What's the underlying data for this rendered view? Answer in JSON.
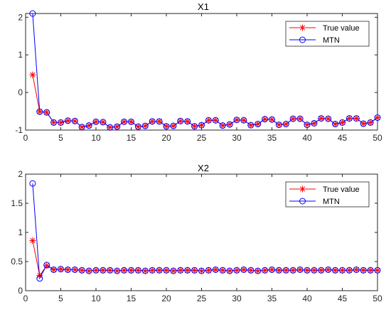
{
  "chart_data": [
    {
      "type": "line",
      "title": "X1",
      "xlabel": "",
      "ylabel": "",
      "xlim": [
        0,
        50
      ],
      "ylim": [
        -1,
        2.1
      ],
      "xticks": [
        0,
        5,
        10,
        15,
        20,
        25,
        30,
        35,
        40,
        45,
        50
      ],
      "yticks": [
        -1,
        0,
        1,
        2
      ],
      "grid": false,
      "legend_position": "top-right",
      "x": [
        1,
        2,
        3,
        4,
        5,
        6,
        7,
        8,
        9,
        10,
        11,
        12,
        13,
        14,
        15,
        16,
        17,
        18,
        19,
        20,
        21,
        22,
        23,
        24,
        25,
        26,
        27,
        28,
        29,
        30,
        31,
        32,
        33,
        34,
        35,
        36,
        37,
        38,
        39,
        40,
        41,
        42,
        43,
        44,
        45,
        46,
        47,
        48,
        49,
        50
      ],
      "series": [
        {
          "name": "True value",
          "color": "#ff0000",
          "marker": "asterisk",
          "values": [
            0.47,
            -0.51,
            -0.53,
            -0.8,
            -0.8,
            -0.75,
            -0.76,
            -0.92,
            -0.88,
            -0.78,
            -0.79,
            -0.93,
            -0.91,
            -0.78,
            -0.78,
            -0.91,
            -0.89,
            -0.77,
            -0.77,
            -0.9,
            -0.89,
            -0.76,
            -0.77,
            -0.9,
            -0.87,
            -0.74,
            -0.74,
            -0.88,
            -0.85,
            -0.73,
            -0.74,
            -0.87,
            -0.84,
            -0.71,
            -0.72,
            -0.86,
            -0.84,
            -0.7,
            -0.7,
            -0.86,
            -0.82,
            -0.69,
            -0.7,
            -0.84,
            -0.8,
            -0.69,
            -0.69,
            -0.83,
            -0.8,
            -0.67
          ]
        },
        {
          "name": "MTN",
          "color": "#0000ff",
          "marker": "circle",
          "values": [
            2.1,
            -0.51,
            -0.53,
            -0.8,
            -0.8,
            -0.75,
            -0.76,
            -0.92,
            -0.88,
            -0.78,
            -0.79,
            -0.93,
            -0.91,
            -0.78,
            -0.78,
            -0.91,
            -0.89,
            -0.77,
            -0.77,
            -0.9,
            -0.89,
            -0.76,
            -0.77,
            -0.9,
            -0.87,
            -0.74,
            -0.74,
            -0.88,
            -0.85,
            -0.73,
            -0.74,
            -0.87,
            -0.84,
            -0.71,
            -0.72,
            -0.86,
            -0.84,
            -0.7,
            -0.7,
            -0.86,
            -0.82,
            -0.69,
            -0.7,
            -0.84,
            -0.8,
            -0.69,
            -0.69,
            -0.83,
            -0.8,
            -0.67
          ]
        }
      ]
    },
    {
      "type": "line",
      "title": "X2",
      "xlabel": "",
      "ylabel": "",
      "xlim": [
        0,
        50
      ],
      "ylim": [
        0,
        2
      ],
      "xticks": [
        0,
        5,
        10,
        15,
        20,
        25,
        30,
        35,
        40,
        45,
        50
      ],
      "yticks": [
        0,
        0.5,
        1,
        1.5,
        2
      ],
      "grid": false,
      "legend_position": "top-right",
      "x": [
        1,
        2,
        3,
        4,
        5,
        6,
        7,
        8,
        9,
        10,
        11,
        12,
        13,
        14,
        15,
        16,
        17,
        18,
        19,
        20,
        21,
        22,
        23,
        24,
        25,
        26,
        27,
        28,
        29,
        30,
        31,
        32,
        33,
        34,
        35,
        36,
        37,
        38,
        39,
        40,
        41,
        42,
        43,
        44,
        45,
        46,
        47,
        48,
        49,
        50
      ],
      "series": [
        {
          "name": "True value",
          "color": "#ff0000",
          "marker": "asterisk",
          "values": [
            0.86,
            0.26,
            0.43,
            0.36,
            0.37,
            0.36,
            0.36,
            0.35,
            0.34,
            0.35,
            0.35,
            0.35,
            0.34,
            0.35,
            0.35,
            0.35,
            0.34,
            0.35,
            0.35,
            0.35,
            0.34,
            0.35,
            0.35,
            0.35,
            0.34,
            0.35,
            0.36,
            0.35,
            0.34,
            0.35,
            0.36,
            0.35,
            0.34,
            0.35,
            0.36,
            0.35,
            0.35,
            0.35,
            0.36,
            0.35,
            0.35,
            0.35,
            0.36,
            0.35,
            0.35,
            0.35,
            0.36,
            0.35,
            0.35,
            0.35
          ]
        },
        {
          "name": "MTN",
          "color": "#0000ff",
          "marker": "circle",
          "values": [
            1.84,
            0.21,
            0.44,
            0.36,
            0.37,
            0.36,
            0.36,
            0.35,
            0.34,
            0.35,
            0.35,
            0.35,
            0.34,
            0.35,
            0.35,
            0.35,
            0.34,
            0.35,
            0.35,
            0.35,
            0.34,
            0.35,
            0.35,
            0.35,
            0.34,
            0.35,
            0.36,
            0.35,
            0.34,
            0.35,
            0.36,
            0.35,
            0.34,
            0.35,
            0.36,
            0.35,
            0.35,
            0.35,
            0.36,
            0.35,
            0.35,
            0.35,
            0.36,
            0.35,
            0.35,
            0.35,
            0.36,
            0.35,
            0.35,
            0.35
          ]
        }
      ]
    }
  ]
}
